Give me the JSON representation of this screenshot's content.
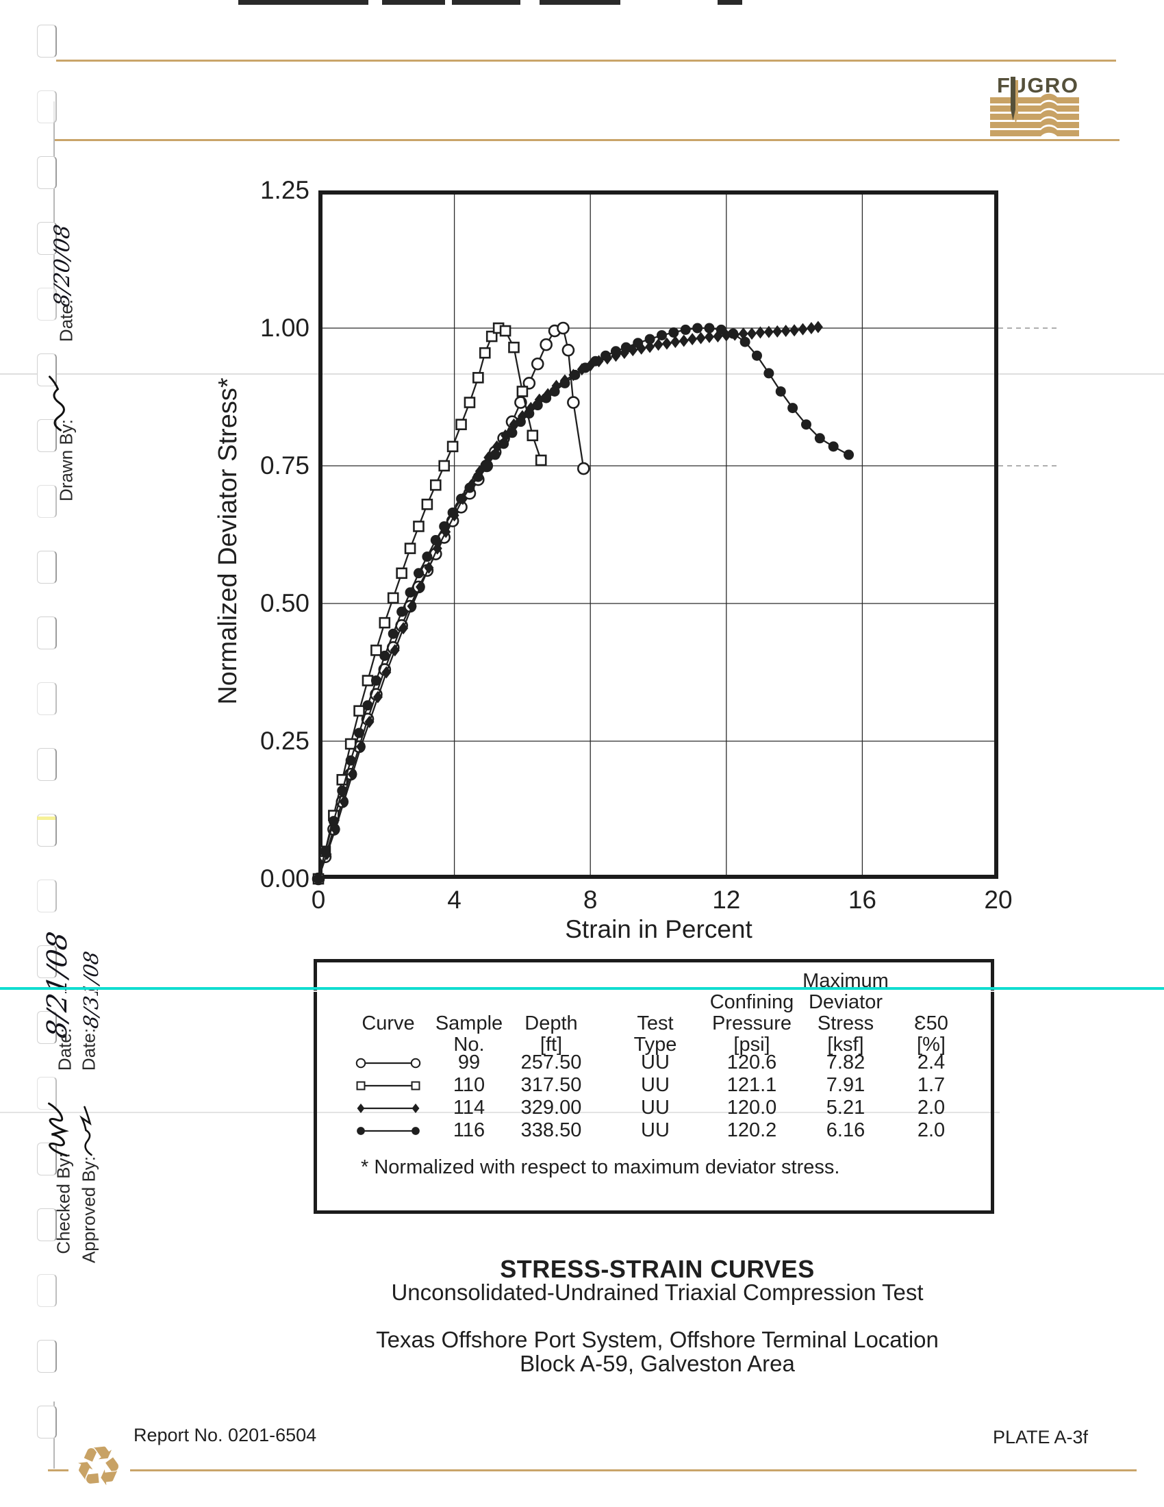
{
  "logo": {
    "text": "FUGRO"
  },
  "colors": {
    "ink": "#1f1f1f",
    "tan": "#c8a265",
    "logo_dark": "#55503a",
    "cyan": "#10ddd0"
  },
  "icons": {
    "recycle": "♻"
  },
  "chart_data": {
    "type": "line",
    "title": "",
    "xlabel": "Strain in Percent",
    "ylabel": "Normalized Deviator Stress*",
    "xlim": [
      0,
      20
    ],
    "ylim": [
      0,
      1.25
    ],
    "grid": true,
    "xticks": [
      {
        "v": 0,
        "label": "0"
      },
      {
        "v": 4,
        "label": "4"
      },
      {
        "v": 8,
        "label": "8"
      },
      {
        "v": 12,
        "label": "12"
      },
      {
        "v": 16,
        "label": "16"
      },
      {
        "v": 20,
        "label": "20"
      }
    ],
    "yticks": [
      {
        "v": 0.0,
        "label": "0.00"
      },
      {
        "v": 0.25,
        "label": "0.25"
      },
      {
        "v": 0.5,
        "label": "0.50"
      },
      {
        "v": 0.75,
        "label": "0.75"
      },
      {
        "v": 1.0,
        "label": "1.00"
      },
      {
        "v": 1.25,
        "label": "1.25"
      }
    ],
    "series": [
      {
        "name": "Sample 99",
        "marker": "circle-open",
        "points": [
          [
            0,
            0
          ],
          [
            0.2,
            0.04
          ],
          [
            0.45,
            0.09
          ],
          [
            0.7,
            0.14
          ],
          [
            0.95,
            0.19
          ],
          [
            1.2,
            0.24
          ],
          [
            1.45,
            0.29
          ],
          [
            1.7,
            0.335
          ],
          [
            1.95,
            0.38
          ],
          [
            2.2,
            0.42
          ],
          [
            2.45,
            0.46
          ],
          [
            2.7,
            0.495
          ],
          [
            2.95,
            0.53
          ],
          [
            3.2,
            0.56
          ],
          [
            3.45,
            0.59
          ],
          [
            3.7,
            0.62
          ],
          [
            3.95,
            0.65
          ],
          [
            4.2,
            0.675
          ],
          [
            4.45,
            0.7
          ],
          [
            4.7,
            0.725
          ],
          [
            4.95,
            0.75
          ],
          [
            5.2,
            0.775
          ],
          [
            5.45,
            0.8
          ],
          [
            5.7,
            0.83
          ],
          [
            5.95,
            0.865
          ],
          [
            6.2,
            0.9
          ],
          [
            6.45,
            0.935
          ],
          [
            6.7,
            0.97
          ],
          [
            6.95,
            0.995
          ],
          [
            7.2,
            1.0
          ],
          [
            7.35,
            0.96
          ],
          [
            7.5,
            0.865
          ],
          [
            7.8,
            0.745
          ]
        ]
      },
      {
        "name": "Sample 110",
        "marker": "square-open",
        "points": [
          [
            0,
            0
          ],
          [
            0.2,
            0.05
          ],
          [
            0.45,
            0.115
          ],
          [
            0.7,
            0.18
          ],
          [
            0.95,
            0.245
          ],
          [
            1.2,
            0.305
          ],
          [
            1.45,
            0.36
          ],
          [
            1.7,
            0.415
          ],
          [
            1.95,
            0.465
          ],
          [
            2.2,
            0.51
          ],
          [
            2.45,
            0.555
          ],
          [
            2.7,
            0.6
          ],
          [
            2.95,
            0.64
          ],
          [
            3.2,
            0.68
          ],
          [
            3.45,
            0.715
          ],
          [
            3.7,
            0.75
          ],
          [
            3.95,
            0.785
          ],
          [
            4.2,
            0.825
          ],
          [
            4.45,
            0.865
          ],
          [
            4.7,
            0.91
          ],
          [
            4.9,
            0.955
          ],
          [
            5.1,
            0.985
          ],
          [
            5.3,
            1.0
          ],
          [
            5.5,
            0.995
          ],
          [
            5.75,
            0.965
          ],
          [
            6.0,
            0.885
          ],
          [
            6.3,
            0.805
          ],
          [
            6.55,
            0.76
          ]
        ]
      },
      {
        "name": "Sample 114",
        "marker": "diamond-filled",
        "points": [
          [
            0,
            0
          ],
          [
            0.25,
            0.045
          ],
          [
            0.5,
            0.09
          ],
          [
            0.75,
            0.14
          ],
          [
            1.0,
            0.19
          ],
          [
            1.25,
            0.24
          ],
          [
            1.5,
            0.285
          ],
          [
            1.75,
            0.33
          ],
          [
            2.0,
            0.375
          ],
          [
            2.25,
            0.415
          ],
          [
            2.5,
            0.455
          ],
          [
            2.75,
            0.495
          ],
          [
            3.0,
            0.53
          ],
          [
            3.25,
            0.565
          ],
          [
            3.5,
            0.6
          ],
          [
            3.75,
            0.63
          ],
          [
            4.0,
            0.66
          ],
          [
            4.25,
            0.69
          ],
          [
            4.5,
            0.715
          ],
          [
            4.75,
            0.74
          ],
          [
            5.0,
            0.765
          ],
          [
            5.25,
            0.785
          ],
          [
            5.5,
            0.805
          ],
          [
            5.75,
            0.825
          ],
          [
            6.0,
            0.84
          ],
          [
            6.25,
            0.855
          ],
          [
            6.5,
            0.87
          ],
          [
            6.75,
            0.88
          ],
          [
            7.0,
            0.895
          ],
          [
            7.25,
            0.905
          ],
          [
            7.5,
            0.915
          ],
          [
            7.75,
            0.925
          ],
          [
            8.0,
            0.932
          ],
          [
            8.25,
            0.94
          ],
          [
            8.5,
            0.945
          ],
          [
            8.75,
            0.95
          ],
          [
            9.0,
            0.955
          ],
          [
            9.25,
            0.96
          ],
          [
            9.5,
            0.963
          ],
          [
            9.75,
            0.966
          ],
          [
            10.0,
            0.97
          ],
          [
            10.25,
            0.972
          ],
          [
            10.5,
            0.975
          ],
          [
            10.75,
            0.977
          ],
          [
            11.0,
            0.98
          ],
          [
            11.25,
            0.982
          ],
          [
            11.5,
            0.984
          ],
          [
            11.75,
            0.985
          ],
          [
            12.0,
            0.987
          ],
          [
            12.25,
            0.988
          ],
          [
            12.5,
            0.99
          ],
          [
            12.75,
            0.99
          ],
          [
            13.0,
            0.992
          ],
          [
            13.25,
            0.993
          ],
          [
            13.5,
            0.994
          ],
          [
            13.75,
            0.995
          ],
          [
            14.0,
            0.996
          ],
          [
            14.25,
            0.998
          ],
          [
            14.5,
            1.0
          ],
          [
            14.7,
            1.002
          ]
        ]
      },
      {
        "name": "Sample 116",
        "marker": "circle-filled",
        "points": [
          [
            0,
            0
          ],
          [
            0.2,
            0.05
          ],
          [
            0.45,
            0.105
          ],
          [
            0.7,
            0.16
          ],
          [
            0.95,
            0.215
          ],
          [
            1.2,
            0.265
          ],
          [
            1.45,
            0.315
          ],
          [
            1.7,
            0.36
          ],
          [
            1.95,
            0.405
          ],
          [
            2.2,
            0.445
          ],
          [
            2.45,
            0.485
          ],
          [
            2.7,
            0.52
          ],
          [
            2.95,
            0.555
          ],
          [
            3.2,
            0.585
          ],
          [
            3.45,
            0.615
          ],
          [
            3.7,
            0.64
          ],
          [
            3.95,
            0.665
          ],
          [
            4.2,
            0.69
          ],
          [
            4.45,
            0.71
          ],
          [
            4.7,
            0.73
          ],
          [
            4.95,
            0.75
          ],
          [
            5.2,
            0.77
          ],
          [
            5.45,
            0.79
          ],
          [
            5.7,
            0.81
          ],
          [
            5.95,
            0.83
          ],
          [
            6.2,
            0.845
          ],
          [
            6.45,
            0.86
          ],
          [
            6.7,
            0.873
          ],
          [
            6.95,
            0.885
          ],
          [
            7.25,
            0.9
          ],
          [
            7.55,
            0.915
          ],
          [
            7.85,
            0.928
          ],
          [
            8.15,
            0.94
          ],
          [
            8.45,
            0.95
          ],
          [
            8.75,
            0.958
          ],
          [
            9.05,
            0.965
          ],
          [
            9.4,
            0.973
          ],
          [
            9.75,
            0.98
          ],
          [
            10.1,
            0.987
          ],
          [
            10.45,
            0.992
          ],
          [
            10.8,
            0.997
          ],
          [
            11.15,
            1.0
          ],
          [
            11.5,
            1.0
          ],
          [
            11.85,
            0.997
          ],
          [
            12.2,
            0.99
          ],
          [
            12.55,
            0.975
          ],
          [
            12.9,
            0.95
          ],
          [
            13.25,
            0.918
          ],
          [
            13.6,
            0.885
          ],
          [
            13.95,
            0.855
          ],
          [
            14.35,
            0.825
          ],
          [
            14.75,
            0.8
          ],
          [
            15.15,
            0.785
          ],
          [
            15.6,
            0.77
          ]
        ]
      }
    ]
  },
  "legend_table": {
    "headers": {
      "curve": "Curve",
      "sample": "Sample\nNo.",
      "depth": "Depth\n[ft]",
      "test": "Test\nType",
      "confining": "Confining\nPressure\n[psi]",
      "max_dev": "Maximum\nDeviator\nStress\n[ksf]",
      "e50": "Ɛ50\n[%]"
    },
    "rows": [
      {
        "marker": "circle-open",
        "sample": "99",
        "depth": "257.50",
        "test": "UU",
        "confining": "120.6",
        "max_dev": "7.82",
        "e50": "2.4"
      },
      {
        "marker": "square-open",
        "sample": "110",
        "depth": "317.50",
        "test": "UU",
        "confining": "121.1",
        "max_dev": "7.91",
        "e50": "1.7"
      },
      {
        "marker": "diamond-filled",
        "sample": "114",
        "depth": "329.00",
        "test": "UU",
        "confining": "120.0",
        "max_dev": "5.21",
        "e50": "2.0"
      },
      {
        "marker": "circle-filled",
        "sample": "116",
        "depth": "338.50",
        "test": "UU",
        "confining": "120.2",
        "max_dev": "6.16",
        "e50": "2.0"
      }
    ],
    "footnote": "* Normalized with respect to maximum deviator stress."
  },
  "titles": {
    "main": "STRESS-STRAIN CURVES",
    "sub": "Unconsolidated-Undrained Triaxial Compression Test",
    "project_line1": "Texas Offshore Port System, Offshore Terminal Location",
    "project_line2": "Block A-59, Galveston Area"
  },
  "footer": {
    "report": "Report No. 0201-6504",
    "plate": "PLATE A-3f"
  },
  "margin": {
    "drawn_date_label": "Date:",
    "drawn_date_value": "8/20/08",
    "drawn_by_label": "Drawn By:",
    "checked_date_label": "Date:",
    "checked_date_value": "8/21/08",
    "checked_by_label": "Checked By:",
    "approved_date_label": "Date:",
    "approved_date_value": "8/31/08",
    "approved_by_label": "Approved By:"
  }
}
